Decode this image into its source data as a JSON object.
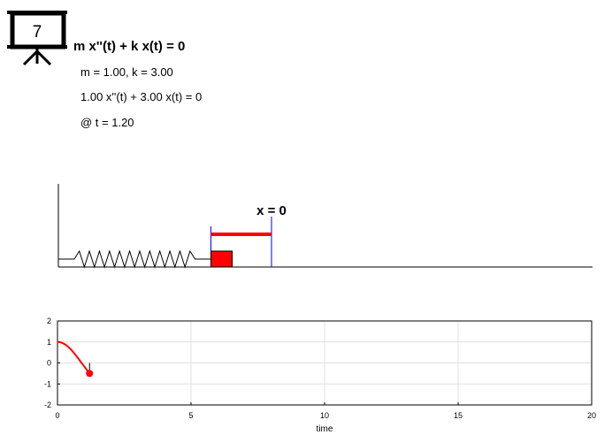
{
  "slide_number": "7",
  "equation": {
    "title": "m x''(t) + k x(t) = 0",
    "params": "m = 1.00, k = 3.00",
    "substituted": "1.00 x''(t) + 3.00 x(t) = 0",
    "time_label": "@ t = 1.20"
  },
  "spring_scene": {
    "equilibrium_label": "x = 0",
    "position_now": -0.5,
    "colors": {
      "mass": "#ff0000",
      "marker": "#0000ff",
      "displacement_bar": "#ff0000",
      "spring": "#000000"
    }
  },
  "chart_data": {
    "type": "line",
    "title": "",
    "xlabel": "time",
    "ylabel": "",
    "xlim": [
      0,
      20
    ],
    "ylim": [
      -2,
      2
    ],
    "xticks": [
      "0",
      "5",
      "10",
      "15",
      "20"
    ],
    "yticks": [
      "2",
      "1",
      "0",
      "-1",
      "-2"
    ],
    "grid": true,
    "series": [
      {
        "x": [
          0,
          0.1,
          0.2,
          0.3,
          0.4,
          0.5,
          0.6,
          0.7,
          0.8,
          0.9,
          1.0,
          1.1,
          1.2
        ],
        "values": [
          1.0,
          0.99,
          0.94,
          0.87,
          0.77,
          0.65,
          0.5,
          0.34,
          0.18,
          0.0,
          -0.16,
          -0.33,
          -0.5
        ],
        "color": "#ff0000"
      }
    ],
    "current_point": {
      "x": 1.2,
      "y": -0.5,
      "color": "#ff0000"
    }
  }
}
